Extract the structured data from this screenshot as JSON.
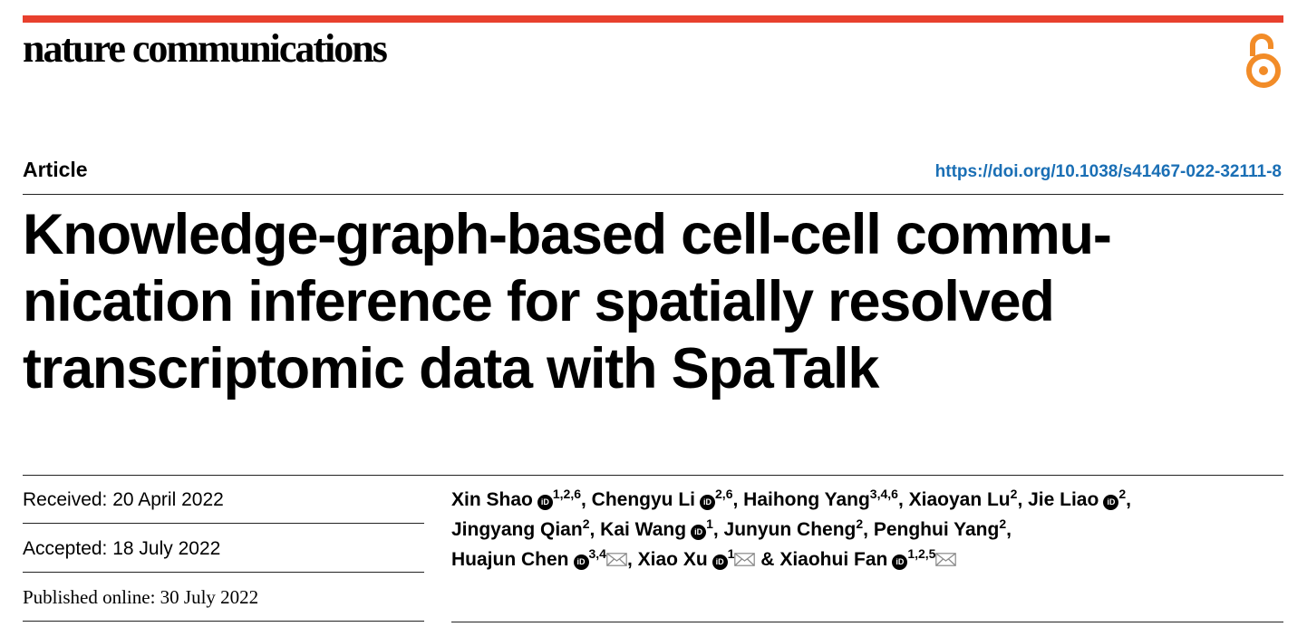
{
  "journal": {
    "name": "nature communications",
    "accent_color": "#e8402e",
    "open_access_icon": "open-access-icon",
    "open_access_color": "#f28c28"
  },
  "article": {
    "type": "Article",
    "doi": "https://doi.org/10.1038/s41467-022-32111-8",
    "title_lines": [
      "Knowledge-graph-based cell-cell commu-",
      "nication inference for spatially resolved",
      "transcriptomic data with SpaTalk"
    ]
  },
  "dates": {
    "received": "Received: 20 April 2022",
    "accepted": "Accepted: 18 July 2022",
    "published": "Published online: 30 July 2022"
  },
  "authors": [
    {
      "name": "Xin Shao",
      "orcid": true,
      "affil": "1,2,6",
      "corresponding": false,
      "sep": ", "
    },
    {
      "name": "Chengyu Li",
      "orcid": true,
      "affil": "2,6",
      "corresponding": false,
      "sep": ", "
    },
    {
      "name": "Haihong Yang",
      "orcid": false,
      "affil": "3,4,6",
      "corresponding": false,
      "sep": ", "
    },
    {
      "name": "Xiaoyan Lu",
      "orcid": false,
      "affil": "2",
      "corresponding": false,
      "sep": ", "
    },
    {
      "name": "Jie Liao",
      "orcid": true,
      "affil": "2",
      "corresponding": false,
      "sep": ","
    },
    {
      "name": "Jingyang Qian",
      "orcid": false,
      "affil": "2",
      "corresponding": false,
      "sep": ", "
    },
    {
      "name": "Kai Wang",
      "orcid": true,
      "affil": "1",
      "corresponding": false,
      "sep": ", "
    },
    {
      "name": "Junyun Cheng",
      "orcid": false,
      "affil": "2",
      "corresponding": false,
      "sep": ", "
    },
    {
      "name": "Penghui Yang",
      "orcid": false,
      "affil": "2",
      "corresponding": false,
      "sep": ","
    },
    {
      "name": "Huajun Chen",
      "orcid": true,
      "affil": "3,4",
      "corresponding": true,
      "sep": ", "
    },
    {
      "name": "Xiao Xu",
      "orcid": true,
      "affil": "1",
      "corresponding": true,
      "sep": " & "
    },
    {
      "name": "Xiaohui Fan",
      "orcid": true,
      "affil": "1,2,5",
      "corresponding": true,
      "sep": ""
    }
  ],
  "author_lines": [
    [
      0,
      1,
      2,
      3,
      4
    ],
    [
      5,
      6,
      7,
      8
    ],
    [
      9,
      10,
      11
    ]
  ],
  "orcid_glyph": "iD"
}
